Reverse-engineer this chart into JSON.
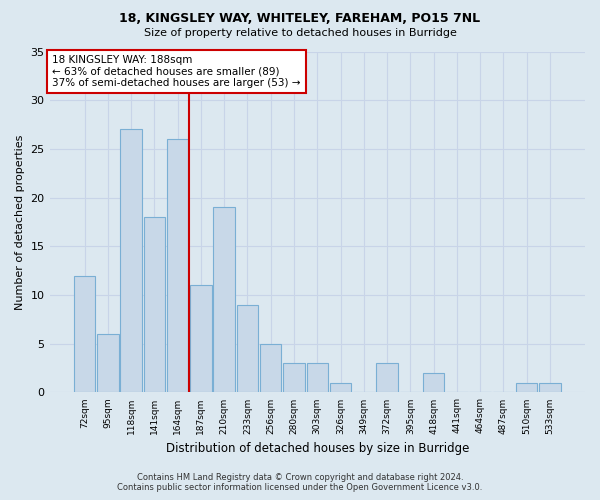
{
  "title1": "18, KINGSLEY WAY, WHITELEY, FAREHAM, PO15 7NL",
  "title2": "Size of property relative to detached houses in Burridge",
  "xlabel": "Distribution of detached houses by size in Burridge",
  "ylabel": "Number of detached properties",
  "categories": [
    "72sqm",
    "95sqm",
    "118sqm",
    "141sqm",
    "164sqm",
    "187sqm",
    "210sqm",
    "233sqm",
    "256sqm",
    "280sqm",
    "303sqm",
    "326sqm",
    "349sqm",
    "372sqm",
    "395sqm",
    "418sqm",
    "441sqm",
    "464sqm",
    "487sqm",
    "510sqm",
    "533sqm"
  ],
  "values": [
    12,
    6,
    27,
    18,
    26,
    11,
    19,
    9,
    5,
    3,
    3,
    1,
    0,
    3,
    0,
    2,
    0,
    0,
    0,
    1,
    1
  ],
  "bar_color": "#c8d8e8",
  "bar_edge_color": "#7aafd4",
  "vline_x_index": 5,
  "vline_color": "#cc0000",
  "annotation_text": "18 KINGSLEY WAY: 188sqm\n← 63% of detached houses are smaller (89)\n37% of semi-detached houses are larger (53) →",
  "annotation_box_color": "#ffffff",
  "annotation_box_edge": "#cc0000",
  "ylim": [
    0,
    35
  ],
  "yticks": [
    0,
    5,
    10,
    15,
    20,
    25,
    30,
    35
  ],
  "grid_color": "#c8d4e8",
  "bg_color": "#dce8f0",
  "footer1": "Contains HM Land Registry data © Crown copyright and database right 2024.",
  "footer2": "Contains public sector information licensed under the Open Government Licence v3.0."
}
